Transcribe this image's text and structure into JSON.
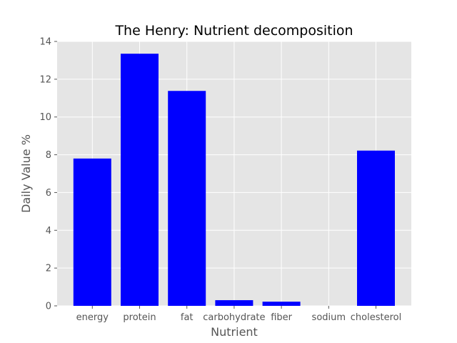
{
  "chart_data": {
    "type": "bar",
    "title": "The Henry: Nutrient decomposition",
    "xlabel": "Nutrient",
    "ylabel": "Daily Value %",
    "categories": [
      "energy",
      "protein",
      "fat",
      "carbohydrate",
      "fiber",
      "sodium",
      "cholesterol"
    ],
    "values": [
      7.8,
      13.35,
      11.38,
      0.3,
      0.22,
      0.0,
      8.22
    ],
    "ylim": [
      0,
      14
    ],
    "yticks": [
      0,
      2,
      4,
      6,
      8,
      10,
      12,
      14
    ],
    "grid": true,
    "bar_color": "#0000ff",
    "plot_background": "#e5e5e5",
    "grid_color": "#ffffff"
  }
}
